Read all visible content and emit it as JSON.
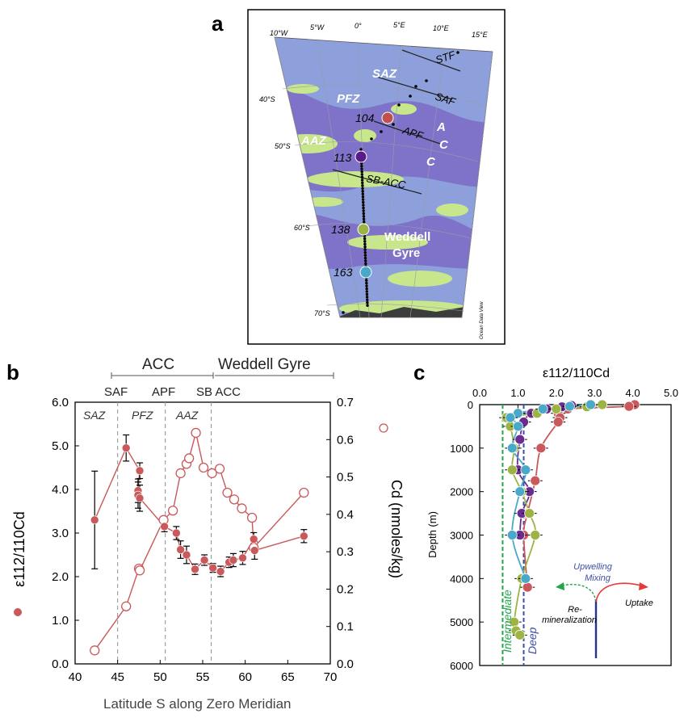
{
  "panel_labels": {
    "a": "a",
    "b": "b",
    "c": "c"
  },
  "map": {
    "lon_labels": [
      "10°W",
      "5°W",
      "0°",
      "5°E",
      "10°E",
      "15°E"
    ],
    "lat_labels": [
      "40°S",
      "50°S",
      "60°S",
      "70°S"
    ],
    "fronts": [
      "STF",
      "SAF",
      "APF",
      "SB-ACC"
    ],
    "zones": [
      "SAZ",
      "PFZ",
      "AAZ"
    ],
    "acc_letters": [
      "A",
      "C",
      "C"
    ],
    "stations": [
      {
        "id": "104",
        "color": "#c2504a"
      },
      {
        "id": "113",
        "color": "#5b1a8a"
      },
      {
        "id": "138",
        "color": "#9cb444"
      },
      {
        "id": "163",
        "color": "#4aa8c8"
      }
    ],
    "gyre_label": "Weddell Gyre",
    "credit": "Ocean Data View",
    "colors": {
      "ocean": "#8da0dc",
      "deep": "#7e73c8",
      "shelf": "#c8e68c",
      "land": "#3c3c3c"
    }
  },
  "panel_b": {
    "header_acc": "ACC",
    "header_gyre": "Weddell Gyre",
    "fronts": [
      "SAF",
      "APF",
      "SB ACC"
    ],
    "zones": [
      "SAZ",
      "PFZ",
      "AAZ"
    ],
    "left_axis_label": "ε112/110Cd",
    "right_axis_label": "Cd (nmoles/kg)",
    "x_label": "Latitude S along Zero Meridian",
    "left_ticks": [
      "0.0",
      "1.0",
      "2.0",
      "3.0",
      "4.0",
      "5.0",
      "6.0"
    ],
    "right_ticks": [
      "0.0",
      "0.1",
      "0.2",
      "0.3",
      "0.4",
      "0.5",
      "0.6",
      "0.7"
    ],
    "x_ticks": [
      "40",
      "45",
      "50",
      "55",
      "60",
      "65",
      "70"
    ],
    "color": "#c9595a"
  },
  "panel_c": {
    "x_label": "ε112/110Cd",
    "y_label": "Depth (m)",
    "x_ticks": [
      "0.0",
      "1.0",
      "2.0",
      "3.0",
      "4.0",
      "5.0"
    ],
    "y_ticks": [
      "0",
      "1000",
      "2000",
      "3000",
      "4000",
      "5000",
      "6000"
    ],
    "intermediate_label": "Intermediate",
    "deep_label": "Deep",
    "legend": {
      "upwelling": "Upwelling",
      "mixing": "Mixing",
      "remin1": "Re-",
      "remin2": "mineralization",
      "uptake": "Uptake"
    }
  },
  "chart_data": [
    {
      "type": "scatter",
      "title": "",
      "xlabel": "Latitude S along Zero Meridian",
      "ylabel": "ε112/110Cd",
      "y2label": "Cd (nmoles/kg)",
      "xlim": [
        40,
        70
      ],
      "ylim": [
        0,
        6
      ],
      "y2lim": [
        0,
        0.7
      ],
      "fronts_lat": {
        "SAF": 45,
        "APF": 50.6,
        "SB ACC": 56
      },
      "series": [
        {
          "name": "ε112/110Cd",
          "axis": "left",
          "x": [
            42.3,
            46.0,
            47.6,
            47.4,
            47.4,
            47.6,
            50.5,
            51.9,
            52.4,
            53.1,
            54.1,
            55.2,
            56.2,
            57.1,
            58.1,
            58.6,
            59.7,
            61.0,
            61.1,
            66.9
          ],
          "y": [
            3.3,
            4.95,
            4.43,
            3.97,
            3.87,
            3.8,
            3.15,
            3.0,
            2.62,
            2.5,
            2.17,
            2.38,
            2.2,
            2.12,
            2.33,
            2.38,
            2.43,
            2.86,
            2.6,
            2.93
          ],
          "err": [
            1.12,
            0.3,
            0.18,
            0.27,
            0.3,
            0.3,
            0.12,
            0.15,
            0.2,
            0.2,
            0.12,
            0.12,
            0.1,
            0.12,
            0.12,
            0.15,
            0.15,
            0.15,
            0.2,
            0.15
          ]
        },
        {
          "name": "Cd (nmoles/kg)",
          "axis": "right",
          "x": [
            42.3,
            46.0,
            47.5,
            47.6,
            50.4,
            51.5,
            52.4,
            53.1,
            53.4,
            54.2,
            55.1,
            56.1,
            57.0,
            57.9,
            58.7,
            59.6,
            60.8,
            61.0,
            66.9
          ],
          "y": [
            0.036,
            0.154,
            0.255,
            0.25,
            0.385,
            0.41,
            0.51,
            0.535,
            0.55,
            0.618,
            0.525,
            0.51,
            0.522,
            0.458,
            0.44,
            0.416,
            0.391,
            0.311,
            0.458
          ]
        }
      ]
    },
    {
      "type": "line",
      "title": "",
      "xlabel": "ε112/110Cd",
      "ylabel": "Depth (m)",
      "xlim": [
        0,
        5
      ],
      "ylim": [
        6000,
        0
      ],
      "reference_lines": [
        {
          "label": "Intermediate",
          "x": 0.6
        },
        {
          "label": "Deep",
          "x": 1.15
        }
      ],
      "series": [
        {
          "name": "104",
          "color": "#c9595a",
          "depth": [
            0,
            40,
            100,
            200,
            300,
            400,
            1000,
            1750,
            2500,
            3000,
            4200
          ],
          "value": [
            4.05,
            3.9,
            2.3,
            2.05,
            2.1,
            2.05,
            1.6,
            1.45,
            1.25,
            1.15,
            1.25
          ]
        },
        {
          "name": "113",
          "color": "#6a2c91",
          "depth": [
            20,
            50,
            100,
            200,
            400,
            800,
            1500,
            2000,
            2500,
            3000
          ],
          "value": [
            2.4,
            2.15,
            1.75,
            1.35,
            1.15,
            1.05,
            1.0,
            1.3,
            1.1,
            1.05
          ]
        },
        {
          "name": "138",
          "color": "#9cb444",
          "depth": [
            0,
            50,
            100,
            200,
            300,
            500,
            1000,
            1500,
            2000,
            2500,
            3000,
            4000,
            5000,
            5200,
            5300
          ],
          "value": [
            3.2,
            2.8,
            2.0,
            1.5,
            0.7,
            0.8,
            0.9,
            0.85,
            1.1,
            1.3,
            1.45,
            1.1,
            0.9,
            0.95,
            1.05
          ]
        },
        {
          "name": "163",
          "color": "#4aa8c8",
          "depth": [
            0,
            40,
            100,
            200,
            300,
            500,
            1000,
            1500,
            2000,
            3000,
            4000
          ],
          "value": [
            2.9,
            2.35,
            1.65,
            1.0,
            0.8,
            1.0,
            0.85,
            1.2,
            1.05,
            0.85,
            1.2
          ]
        }
      ]
    }
  ]
}
